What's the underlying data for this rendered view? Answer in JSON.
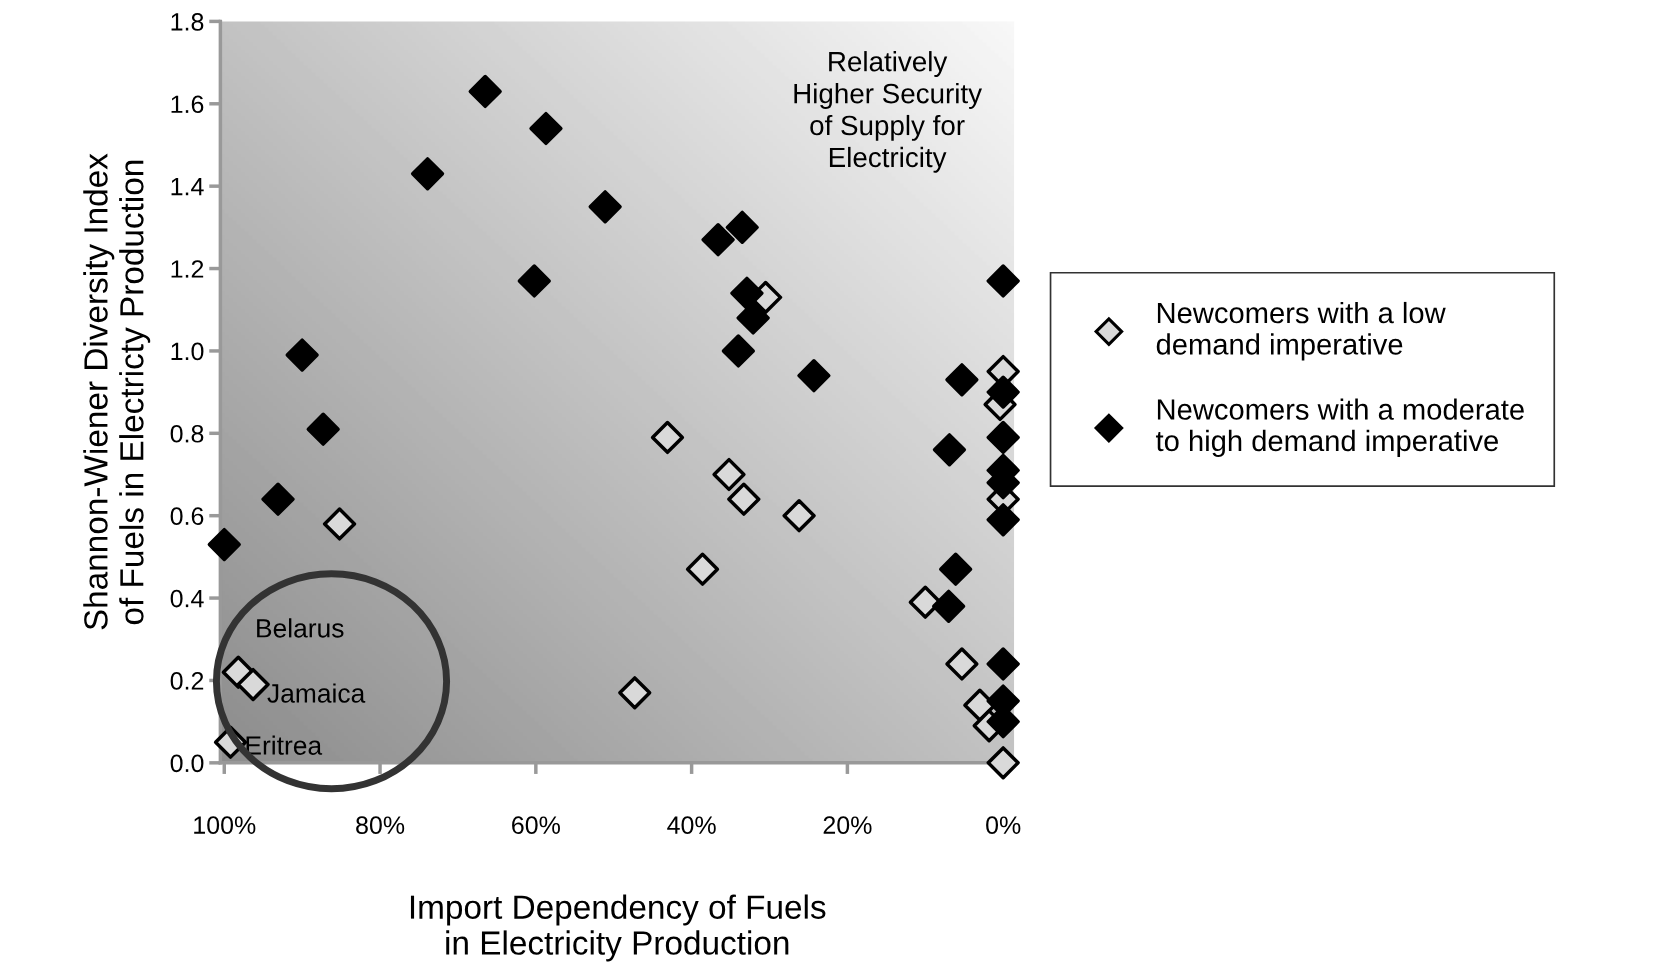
{
  "chart_data": {
    "type": "scatter",
    "xlabel": "Import Dependency of Fuels in Electricity Production",
    "ylabel": "Shannon-Wiener Diversity Index of Fuels in Electricty Production",
    "xlim": [
      100.5,
      -1.4
    ],
    "ylim": [
      0,
      1.8
    ],
    "xticks": [
      {
        "value": 100,
        "label": "100%"
      },
      {
        "value": 80,
        "label": "80%"
      },
      {
        "value": 60,
        "label": "60%"
      },
      {
        "value": 40,
        "label": "40%"
      },
      {
        "value": 20,
        "label": "20%"
      },
      {
        "value": 0,
        "label": "0%"
      }
    ],
    "yticks": [
      {
        "value": 0,
        "label": "0.0"
      },
      {
        "value": 0.2,
        "label": "0.2"
      },
      {
        "value": 0.4,
        "label": "0.4"
      },
      {
        "value": 0.6,
        "label": "0.6"
      },
      {
        "value": 0.8,
        "label": "0.8"
      },
      {
        "value": 1.0,
        "label": "1.0"
      },
      {
        "value": 1.2,
        "label": "1.2"
      },
      {
        "value": 1.4,
        "label": "1.4"
      },
      {
        "value": 1.6,
        "label": "1.6"
      },
      {
        "value": 1.8,
        "label": "1.8"
      }
    ],
    "marker": "diamond",
    "grid": false,
    "legend": "right",
    "series": [
      {
        "name": "Newcomers with a low demand imperative",
        "color": "#d9d9d9",
        "x": [
          30.5,
          0,
          0.4,
          0,
          43.1,
          35.2,
          33.3,
          26.2,
          38.6,
          85.2,
          47.3,
          10.0,
          5.3,
          3.0,
          1.8,
          0,
          98.2,
          96.3,
          99.2
        ],
        "values": [
          1.13,
          0.95,
          0.87,
          0.64,
          0.79,
          0.7,
          0.64,
          0.6,
          0.47,
          0.58,
          0.17,
          0.39,
          0.24,
          0.14,
          0.09,
          0.0,
          0.22,
          0.19,
          0.05
        ]
      },
      {
        "name": "Newcomers with a moderate to high demand imperative",
        "color": "#000000",
        "x": [
          100,
          93.1,
          87.3,
          90.0,
          73.9,
          66.5,
          58.7,
          60.2,
          51.1,
          36.6,
          33.5,
          32.9,
          32.1,
          34.0,
          24.3,
          0,
          5.3,
          6.9,
          0,
          0,
          0,
          0,
          0,
          6.1,
          7.0,
          0,
          0,
          0
        ],
        "values": [
          0.53,
          0.64,
          0.81,
          0.99,
          1.43,
          1.63,
          1.54,
          1.17,
          1.35,
          1.27,
          1.3,
          1.14,
          1.08,
          1.0,
          0.94,
          1.17,
          0.93,
          0.76,
          0.9,
          0.79,
          0.71,
          0.68,
          0.59,
          0.47,
          0.38,
          0.24,
          0.15,
          0.1
        ]
      }
    ],
    "annotations": [
      "Relatively Higher Security of Supply for Electricity",
      {
        "text": "Belarus",
        "x": 98.2,
        "y": 0.22
      },
      {
        "text": "Jamaica",
        "x": 96.3,
        "y": 0.19
      },
      {
        "text": "Eritrea",
        "x": 99.2,
        "y": 0.05
      }
    ]
  }
}
